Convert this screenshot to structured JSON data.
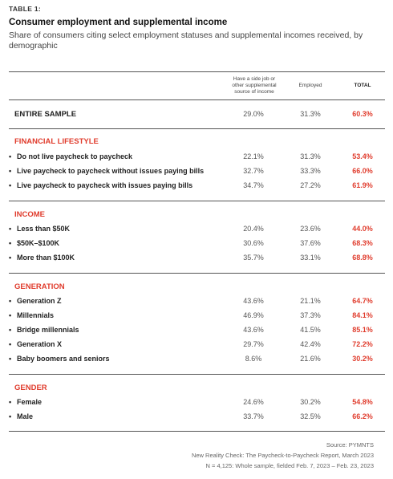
{
  "table_label": "TABLE 1:",
  "title": "Consumer employment and supplemental income",
  "subtitle": "Share of consumers citing select employment statuses and supplemental incomes received, by demographic",
  "columns": {
    "c1": "Have a side job or other supplemental source of income",
    "c2": "Employed",
    "c3": "TOTAL"
  },
  "entire_sample": {
    "label": "ENTIRE SAMPLE",
    "v1": "29.0%",
    "v2": "31.3%",
    "v3": "60.3%"
  },
  "sections": [
    {
      "title": "FINANCIAL LIFESTYLE",
      "rows": [
        {
          "label": "Do not live paycheck to paycheck",
          "v1": "22.1%",
          "v2": "31.3%",
          "v3": "53.4%"
        },
        {
          "label": "Live paycheck to paycheck without issues paying bills",
          "v1": "32.7%",
          "v2": "33.3%",
          "v3": "66.0%"
        },
        {
          "label": "Live paycheck to paycheck with issues paying bills",
          "v1": "34.7%",
          "v2": "27.2%",
          "v3": "61.9%"
        }
      ]
    },
    {
      "title": "INCOME",
      "rows": [
        {
          "label": "Less than $50K",
          "v1": "20.4%",
          "v2": "23.6%",
          "v3": "44.0%"
        },
        {
          "label": "$50K–$100K",
          "v1": "30.6%",
          "v2": "37.6%",
          "v3": "68.3%"
        },
        {
          "label": "More than $100K",
          "v1": "35.7%",
          "v2": "33.1%",
          "v3": "68.8%"
        }
      ]
    },
    {
      "title": "GENERATION",
      "rows": [
        {
          "label": "Generation Z",
          "v1": "43.6%",
          "v2": "21.1%",
          "v3": "64.7%"
        },
        {
          "label": "Millennials",
          "v1": "46.9%",
          "v2": "37.3%",
          "v3": "84.1%"
        },
        {
          "label": "Bridge millennials",
          "v1": "43.6%",
          "v2": "41.5%",
          "v3": "85.1%"
        },
        {
          "label": "Generation X",
          "v1": "29.7%",
          "v2": "42.4%",
          "v3": "72.2%"
        },
        {
          "label": "Baby boomers and seniors",
          "v1": "8.6%",
          "v2": "21.6%",
          "v3": "30.2%"
        }
      ]
    },
    {
      "title": "GENDER",
      "rows": [
        {
          "label": "Female",
          "v1": "24.6%",
          "v2": "30.2%",
          "v3": "54.8%"
        },
        {
          "label": "Male",
          "v1": "33.7%",
          "v2": "32.5%",
          "v3": "66.2%"
        }
      ]
    }
  ],
  "source": {
    "line1": "Source: PYMNTS",
    "line2": "New Reality Check: The Paycheck-to-Paycheck Report, March 2023",
    "line3": "N = 4,125: Whole sample, fielded Feb. 7, 2023 – Feb. 23, 2023"
  },
  "colors": {
    "accent": "#e03c2d",
    "text": "#222222",
    "muted": "#555555"
  }
}
